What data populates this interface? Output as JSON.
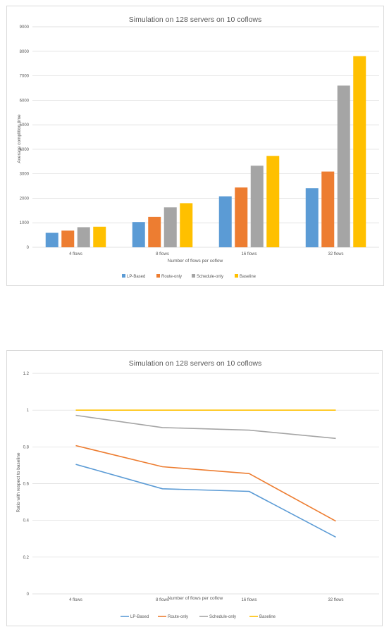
{
  "chart_data": [
    {
      "type": "bar",
      "title": "Simulation on 128 servers on 10 coflows",
      "xlabel": "",
      "ylabel": "Average complition time",
      "categories": [
        "4 flows",
        "8 flows",
        "16 flows",
        "32 flows"
      ],
      "ylim": [
        0,
        9000
      ],
      "yticks": [
        "0",
        "1000",
        "2000",
        "3000",
        "4000",
        "5000",
        "6000",
        "7000",
        "8000",
        "9000"
      ],
      "grid": true,
      "legend_position": "bottom",
      "series": [
        {
          "name": "LP-Based",
          "color": "#5b9bd5",
          "values": [
            590,
            1030,
            2080,
            2410
          ]
        },
        {
          "name": "Route-only",
          "color": "#ed7d31",
          "values": [
            680,
            1240,
            2440,
            3090
          ]
        },
        {
          "name": "Schedule-only",
          "color": "#a5a5a5",
          "values": [
            820,
            1630,
            3330,
            6600
          ]
        },
        {
          "name": "Baseline",
          "color": "#ffc000",
          "values": [
            840,
            1800,
            3730,
            7800
          ]
        }
      ]
    },
    {
      "type": "line",
      "title": "Simulation on 128 servers on 10 coflows",
      "xlabel": "Number of flows per coflow",
      "ylabel": "Ratio with respect to baseline",
      "categories": [
        "4 flows",
        "8 flows",
        "16 flows",
        "32 flows"
      ],
      "ylim": [
        0,
        1.2
      ],
      "yticks": [
        "0",
        "0.2",
        "0.4",
        "0.6",
        "0.8",
        "1",
        "1.2"
      ],
      "grid": true,
      "legend_position": "bottom",
      "series": [
        {
          "name": "LP-Based",
          "color": "#5b9bd5",
          "values": [
            0.705,
            0.572,
            0.558,
            0.309
          ]
        },
        {
          "name": "Route-only",
          "color": "#ed7d31",
          "values": [
            0.807,
            0.692,
            0.655,
            0.396
          ]
        },
        {
          "name": "Schedule-only",
          "color": "#a5a5a5",
          "values": [
            0.972,
            0.905,
            0.891,
            0.846
          ]
        },
        {
          "name": "Baseline",
          "color": "#ffc000",
          "values": [
            1,
            1,
            1,
            1
          ]
        }
      ]
    }
  ],
  "chart1_xlabel_shown": "Number of flows per coflow"
}
